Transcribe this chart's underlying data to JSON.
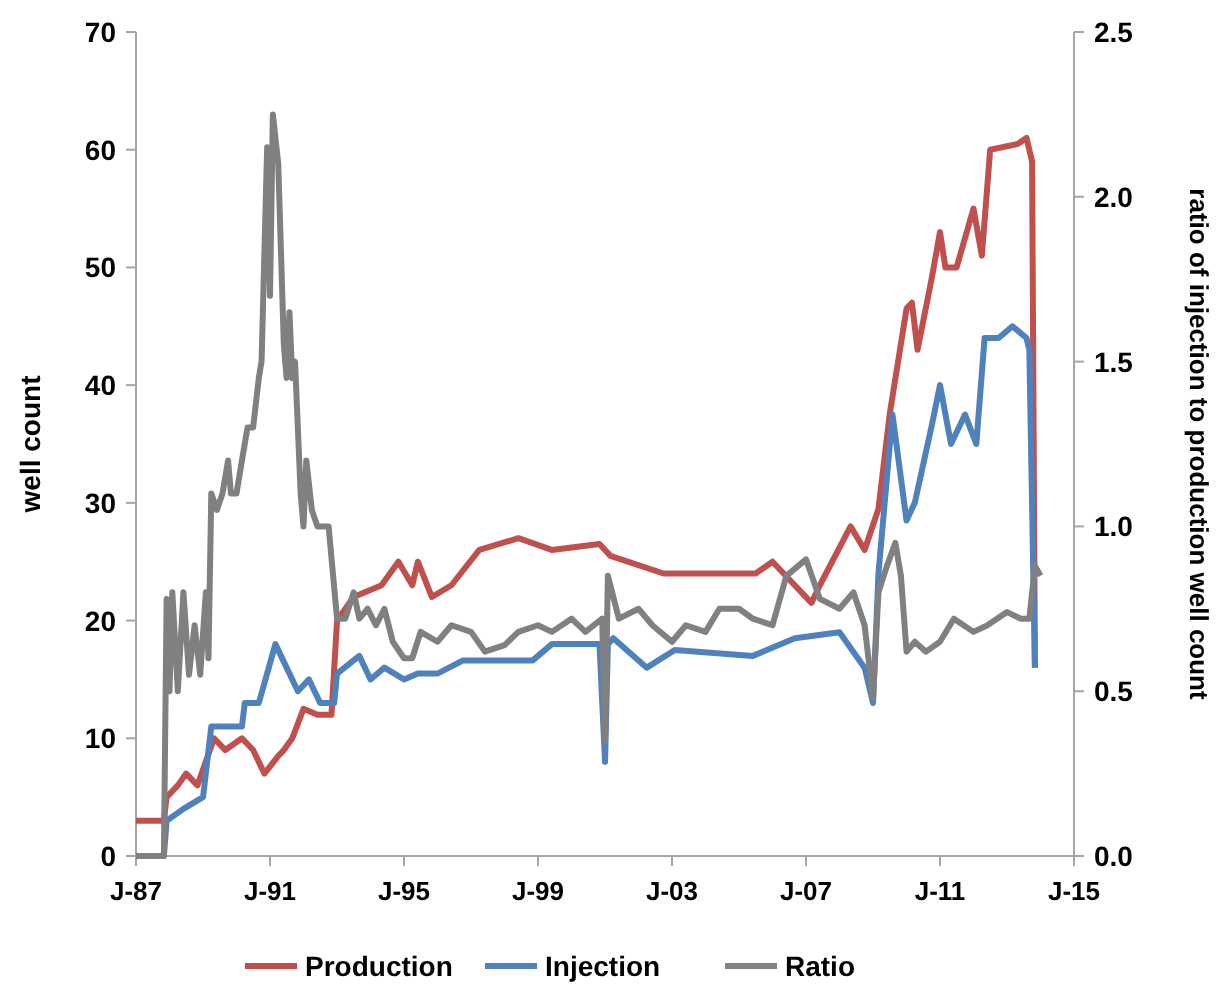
{
  "chart_data": {
    "type": "line",
    "ylabel": "well count",
    "y2label": "ratio of injection to production well count",
    "xlim": [
      "1987-01",
      "2015-01"
    ],
    "xticks": [
      {
        "value": "1987-01",
        "label": "J-87"
      },
      {
        "value": "1991-01",
        "label": "J-91"
      },
      {
        "value": "1995-01",
        "label": "J-95"
      },
      {
        "value": "1999-01",
        "label": "J-99"
      },
      {
        "value": "2003-01",
        "label": "J-03"
      },
      {
        "value": "2007-01",
        "label": "J-07"
      },
      {
        "value": "2011-01",
        "label": "J-11"
      },
      {
        "value": "2015-01",
        "label": "J-15"
      }
    ],
    "ylim": [
      0,
      70
    ],
    "yticks": [
      0,
      10,
      20,
      30,
      40,
      50,
      60,
      70
    ],
    "y2lim": [
      0,
      2.5
    ],
    "y2ticks": [
      {
        "value": 0,
        "label": "0.0"
      },
      {
        "value": 0.5,
        "label": "0.5"
      },
      {
        "value": 1,
        "label": "1.0"
      },
      {
        "value": 1.5,
        "label": "1.5"
      },
      {
        "value": 2,
        "label": "2.0"
      },
      {
        "value": 2.5,
        "label": "2.5"
      }
    ],
    "grid": false,
    "legend": "bottom",
    "line_style": "solid",
    "series": [
      {
        "name": "Production",
        "color": "#c0504d",
        "x": [
          "1987-01",
          "1987-11",
          "1987-12",
          "1988-04",
          "1988-07",
          "1988-11",
          "1989-05",
          "1989-09",
          "1990-03",
          "1990-07",
          "1990-11",
          "1991-04",
          "1991-06",
          "1991-09",
          "1992-01",
          "1992-06",
          "1992-11",
          "1993-01",
          "1993-07",
          "1994-05",
          "1994-11",
          "1995-04",
          "1995-06",
          "1995-11",
          "1996-06",
          "1997-04",
          "1998-06",
          "1999-06",
          "2000-11",
          "2001-03",
          "2002-10",
          "2005-07",
          "2006-01",
          "2007-03",
          "2007-06",
          "2008-05",
          "2008-10",
          "2009-03",
          "2009-07",
          "2010-01",
          "2010-03",
          "2010-05",
          "2010-10",
          "2011-01",
          "2011-03",
          "2011-07",
          "2012-01",
          "2012-04",
          "2012-07",
          "2013-05",
          "2013-08",
          "2013-10",
          "2013-11"
        ],
        "values": [
          3,
          3,
          5,
          6,
          7,
          6,
          10,
          9,
          10,
          9,
          7,
          8.5,
          9,
          10,
          12.5,
          12,
          12,
          20,
          22,
          23,
          25,
          23,
          25,
          22,
          23,
          26,
          27,
          26,
          26.5,
          25.5,
          24,
          24,
          25,
          21.5,
          23,
          28,
          26,
          29.5,
          37.5,
          46.5,
          47,
          43,
          49,
          53,
          50,
          50,
          55,
          51,
          60,
          60.5,
          61,
          59,
          16
        ]
      },
      {
        "name": "Injection",
        "color": "#4f81bd",
        "x": [
          "1987-01",
          "1987-11",
          "1987-12",
          "1988-06",
          "1989-01",
          "1989-04",
          "1990-03",
          "1990-04",
          "1990-09",
          "1991-03",
          "1991-07",
          "1991-11",
          "1992-03",
          "1992-07",
          "1992-12",
          "1993-01",
          "1993-09",
          "1994-01",
          "1994-06",
          "1995-01",
          "1995-06",
          "1996-01",
          "1996-10",
          "1998-11",
          "1999-06",
          "2000-11",
          "2001-01",
          "2001-02",
          "2001-04",
          "2002-04",
          "2003-02",
          "2005-06",
          "2006-09",
          "2008-01",
          "2008-10",
          "2009-01",
          "2009-03",
          "2009-08",
          "2010-01",
          "2010-04",
          "2010-10",
          "2011-01",
          "2011-05",
          "2011-10",
          "2012-02",
          "2012-05",
          "2012-10",
          "2013-03",
          "2013-08",
          "2013-09",
          "2013-11"
        ],
        "values": [
          0,
          0,
          3,
          4,
          5,
          11,
          11,
          13,
          13,
          18,
          16,
          14,
          15,
          13,
          13,
          15.5,
          17,
          15,
          16,
          15,
          15.5,
          15.5,
          16.6,
          16.6,
          18,
          18,
          8,
          18,
          18.5,
          16,
          17.5,
          17,
          18.5,
          19,
          16,
          13,
          24,
          37.5,
          28.5,
          30,
          36.5,
          40,
          35,
          37.5,
          35,
          44,
          44,
          45,
          44,
          43,
          16
        ]
      },
      {
        "name": "Ratio",
        "color": "#808080",
        "axis": "y2",
        "x": [
          "1987-01",
          "1987-11",
          "1987-12",
          "1988-01",
          "1988-02",
          "1988-04",
          "1988-06",
          "1988-08",
          "1988-10",
          "1988-12",
          "1989-02",
          "1989-03",
          "1989-04",
          "1989-06",
          "1989-08",
          "1989-10",
          "1989-11",
          "1990-01",
          "1990-03",
          "1990-05",
          "1990-07",
          "1990-09",
          "1990-10",
          "1990-12",
          "1991-01",
          "1991-02",
          "1991-04",
          "1991-06",
          "1991-07",
          "1991-08",
          "1991-09",
          "1991-10",
          "1991-12",
          "1992-01",
          "1992-02",
          "1992-04",
          "1992-06",
          "1992-10",
          "1993-01",
          "1993-04",
          "1993-07",
          "1993-09",
          "1993-12",
          "1994-03",
          "1994-06",
          "1994-09",
          "1995-01",
          "1995-04",
          "1995-07",
          "1996-01",
          "1996-06",
          "1997-01",
          "1997-06",
          "1998-01",
          "1998-06",
          "1999-01",
          "1999-06",
          "2000-01",
          "2000-06",
          "2000-12",
          "2001-01",
          "2001-02",
          "2001-06",
          "2002-01",
          "2002-06",
          "2003-01",
          "2003-06",
          "2004-01",
          "2004-06",
          "2005-01",
          "2005-06",
          "2006-01",
          "2006-06",
          "2007-01",
          "2007-06",
          "2008-01",
          "2008-06",
          "2008-10",
          "2009-01",
          "2009-03",
          "2009-06",
          "2009-09",
          "2009-11",
          "2010-01",
          "2010-04",
          "2010-08",
          "2011-01",
          "2011-06",
          "2012-01",
          "2012-06",
          "2013-01",
          "2013-06",
          "2013-09",
          "2013-11",
          "2014-01"
        ],
        "values": [
          0,
          0,
          0.78,
          0.5,
          0.8,
          0.5,
          0.8,
          0.55,
          0.7,
          0.55,
          0.8,
          0.6,
          1.1,
          1.05,
          1.1,
          1.2,
          1.1,
          1.1,
          1.2,
          1.3,
          1.3,
          1.45,
          1.5,
          2.15,
          1.7,
          2.25,
          2.1,
          1.55,
          1.45,
          1.65,
          1.45,
          1.5,
          1.1,
          1.0,
          1.2,
          1.05,
          1.0,
          1.0,
          0.72,
          0.72,
          0.8,
          0.72,
          0.75,
          0.7,
          0.75,
          0.65,
          0.6,
          0.6,
          0.68,
          0.65,
          0.7,
          0.68,
          0.62,
          0.64,
          0.68,
          0.7,
          0.68,
          0.72,
          0.68,
          0.72,
          0.35,
          0.85,
          0.72,
          0.75,
          0.7,
          0.65,
          0.7,
          0.68,
          0.75,
          0.75,
          0.72,
          0.7,
          0.85,
          0.9,
          0.78,
          0.75,
          0.8,
          0.7,
          0.48,
          0.8,
          0.88,
          0.95,
          0.85,
          0.62,
          0.65,
          0.62,
          0.65,
          0.72,
          0.68,
          0.7,
          0.74,
          0.72,
          0.72,
          0.88,
          0.85
        ]
      }
    ]
  }
}
